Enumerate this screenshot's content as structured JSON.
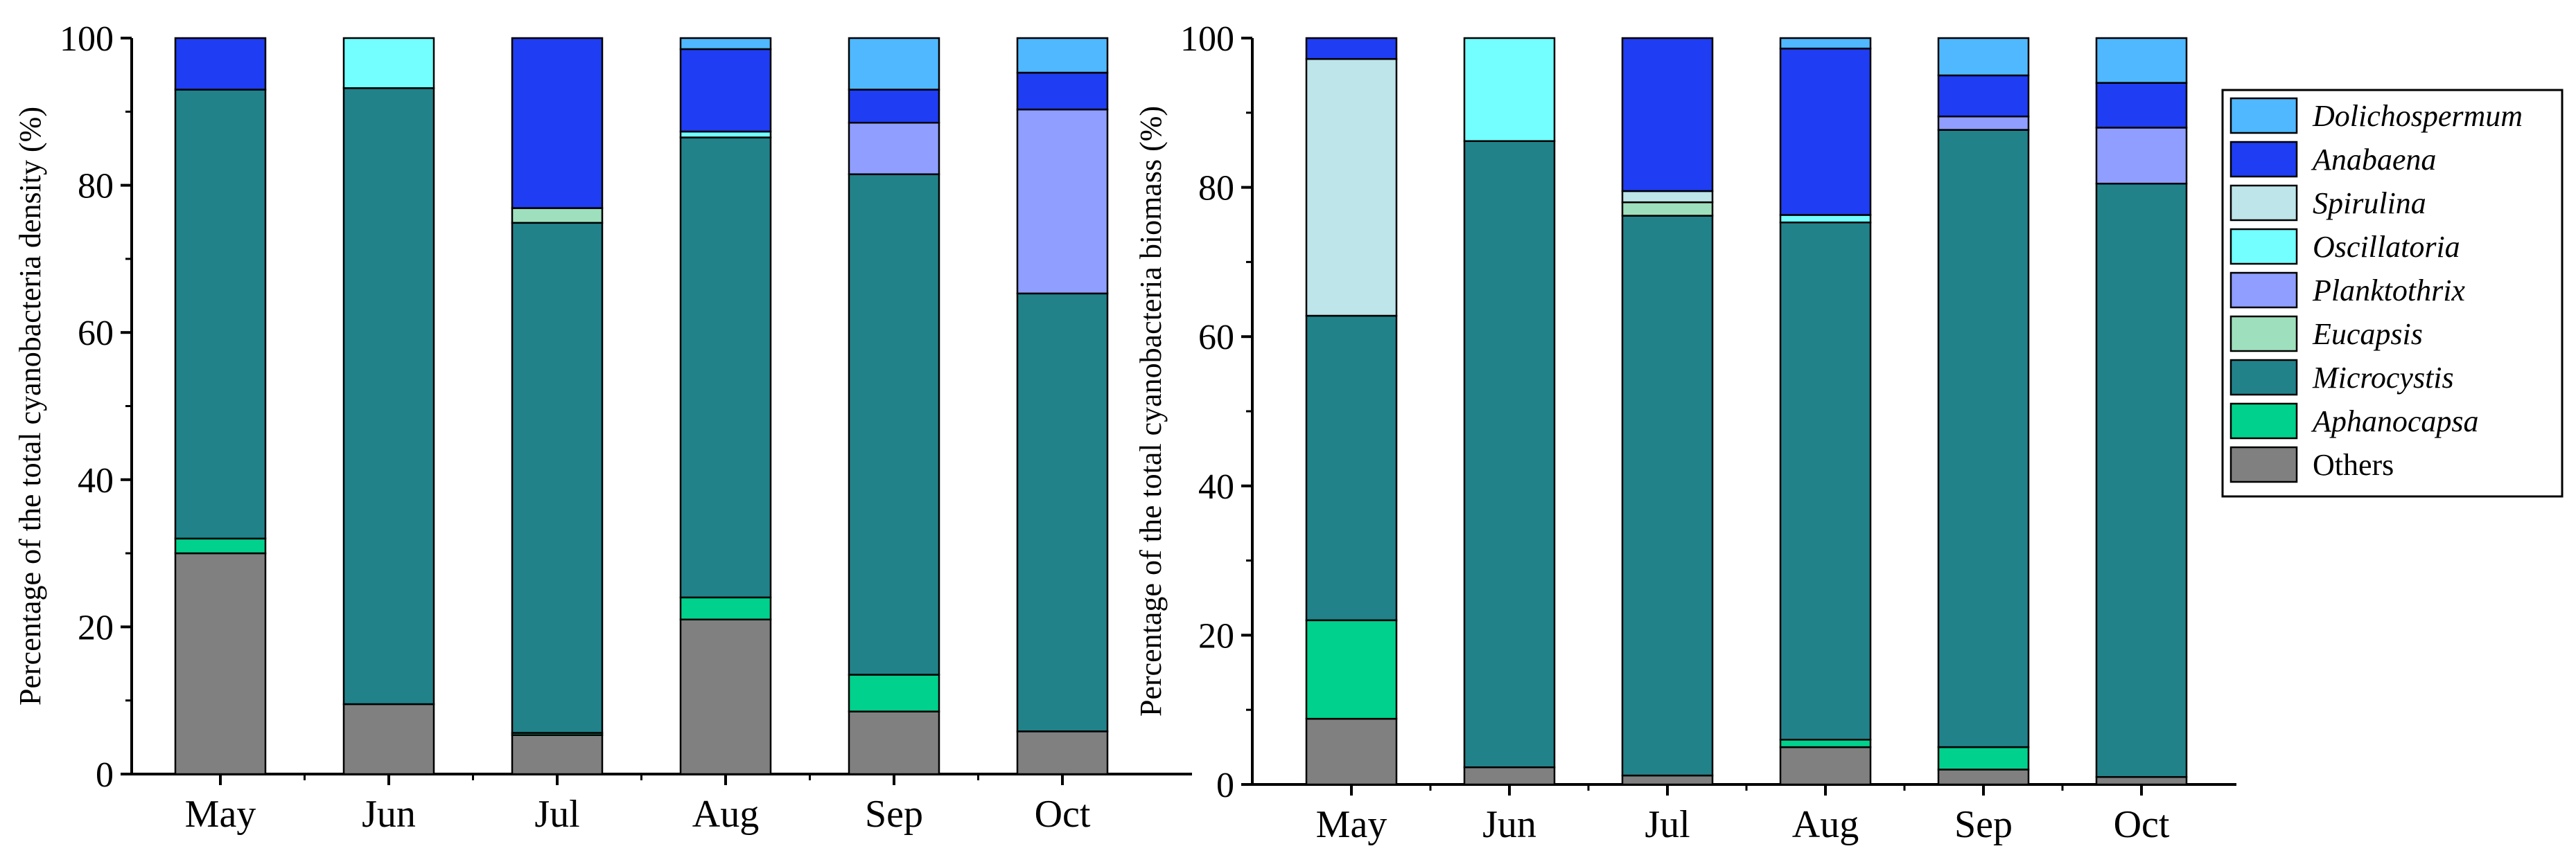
{
  "chart_data": [
    {
      "type": "bar",
      "stacked": true,
      "title": "",
      "xlabel": "",
      "ylabel": "Percentage of the total cyanobacteria density (%)",
      "ylim": [
        0,
        100
      ],
      "yticks": [
        "0",
        "20",
        "40",
        "60",
        "80",
        "100"
      ],
      "categories": [
        "May",
        "Jun",
        "Jul",
        "Aug",
        "Sep",
        "Oct"
      ],
      "series": [
        {
          "name": "Others",
          "values": [
            30,
            9.5,
            5.3,
            21,
            8.5,
            5.8
          ]
        },
        {
          "name": "Aphanocapsa",
          "values": [
            2,
            0,
            0.3,
            3,
            5,
            0
          ]
        },
        {
          "name": "Microcystis",
          "values": [
            61,
            83.7,
            69.3,
            62.5,
            68,
            59.5
          ]
        },
        {
          "name": "Eucapsis",
          "values": [
            0,
            0,
            2,
            0,
            0,
            0
          ]
        },
        {
          "name": "Planktothrix",
          "values": [
            0,
            0,
            0,
            0,
            7,
            25
          ]
        },
        {
          "name": "Oscillatoria",
          "values": [
            0,
            6.8,
            0,
            0.8,
            0,
            0
          ]
        },
        {
          "name": "Spirulina",
          "values": [
            0,
            0,
            0,
            0,
            0,
            0
          ]
        },
        {
          "name": "Anabaena",
          "values": [
            7,
            0,
            23.1,
            11.2,
            4.5,
            5
          ]
        },
        {
          "name": "Dolichospermum",
          "values": [
            0,
            0,
            0,
            1.5,
            7,
            4.7
          ]
        }
      ]
    },
    {
      "type": "bar",
      "stacked": true,
      "title": "",
      "xlabel": "",
      "ylabel": "Percentage of the total cyanobacteria biomass (%)",
      "ylim": [
        0,
        100
      ],
      "yticks": [
        "0",
        "20",
        "40",
        "60",
        "80",
        "100"
      ],
      "categories": [
        "May",
        "Jun",
        "Jul",
        "Aug",
        "Sep",
        "Oct"
      ],
      "series": [
        {
          "name": "Others",
          "values": [
            8.8,
            2.3,
            1.2,
            5,
            2,
            1
          ]
        },
        {
          "name": "Aphanocapsa",
          "values": [
            13.2,
            0,
            0,
            1,
            3,
            0
          ]
        },
        {
          "name": "Microcystis",
          "values": [
            40.8,
            83.9,
            75,
            69.3,
            82.7,
            79.5
          ]
        },
        {
          "name": "Eucapsis",
          "values": [
            0,
            0,
            1.8,
            0,
            0,
            0
          ]
        },
        {
          "name": "Planktothrix",
          "values": [
            0,
            0,
            0,
            0,
            1.8,
            7.5
          ]
        },
        {
          "name": "Oscillatoria",
          "values": [
            0,
            13.8,
            0,
            1,
            0,
            0
          ]
        },
        {
          "name": "Spirulina",
          "values": [
            34.4,
            0,
            1.5,
            0,
            0,
            0
          ]
        },
        {
          "name": "Anabaena",
          "values": [
            2.8,
            0,
            20.5,
            22.3,
            5.5,
            6
          ]
        },
        {
          "name": "Dolichospermum",
          "values": [
            0,
            0,
            0,
            1.4,
            5,
            6
          ]
        }
      ]
    }
  ],
  "legend": {
    "items": [
      {
        "name": "Dolichospermum",
        "italic": true
      },
      {
        "name": "Anabaena",
        "italic": true
      },
      {
        "name": "Spirulina",
        "italic": true
      },
      {
        "name": "Oscillatoria",
        "italic": true
      },
      {
        "name": "Planktothrix",
        "italic": true
      },
      {
        "name": "Eucapsis",
        "italic": true
      },
      {
        "name": "Microcystis",
        "italic": true
      },
      {
        "name": "Aphanocapsa",
        "italic": true
      },
      {
        "name": "Others",
        "italic": false
      }
    ]
  },
  "colors": {
    "Others": "#808080",
    "Aphanocapsa": "#00D18C",
    "Microcystis": "#21828A",
    "Eucapsis": "#9EE0BD",
    "Planktothrix": "#8F9EFF",
    "Oscillatoria": "#73FFFF",
    "Spirulina": "#BDE5EA",
    "Anabaena": "#1F3DF2",
    "Dolichospermum": "#4FB8FF"
  }
}
